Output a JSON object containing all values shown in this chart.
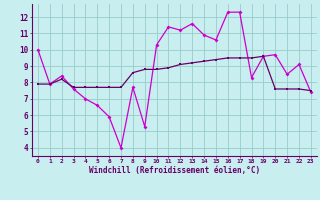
{
  "xlabel": "Windchill (Refroidissement éolien,°C)",
  "x": [
    0,
    1,
    2,
    3,
    4,
    5,
    6,
    7,
    8,
    9,
    10,
    11,
    12,
    13,
    14,
    15,
    16,
    17,
    18,
    19,
    20,
    21,
    22,
    23
  ],
  "line1": [
    10.0,
    7.9,
    8.4,
    7.6,
    7.0,
    6.6,
    5.9,
    4.0,
    7.7,
    5.3,
    10.3,
    11.4,
    11.2,
    11.6,
    10.9,
    10.6,
    12.3,
    12.3,
    8.3,
    9.6,
    9.7,
    8.5,
    9.1,
    7.4
  ],
  "line2": [
    7.9,
    7.9,
    8.2,
    7.7,
    7.7,
    7.7,
    7.7,
    7.7,
    8.6,
    8.8,
    8.8,
    8.9,
    9.1,
    9.2,
    9.3,
    9.4,
    9.5,
    9.5,
    9.5,
    9.6,
    7.6,
    7.6,
    7.6,
    7.5
  ],
  "line1_color": "#cc00cc",
  "line2_color": "#660066",
  "bg_color": "#c8eef0",
  "grid_color": "#99cccc",
  "ylim": [
    3.5,
    12.8
  ],
  "yticks": [
    4,
    5,
    6,
    7,
    8,
    9,
    10,
    11,
    12
  ],
  "axis_label_color": "#660066",
  "tick_color": "#660066",
  "spine_color": "#660066"
}
